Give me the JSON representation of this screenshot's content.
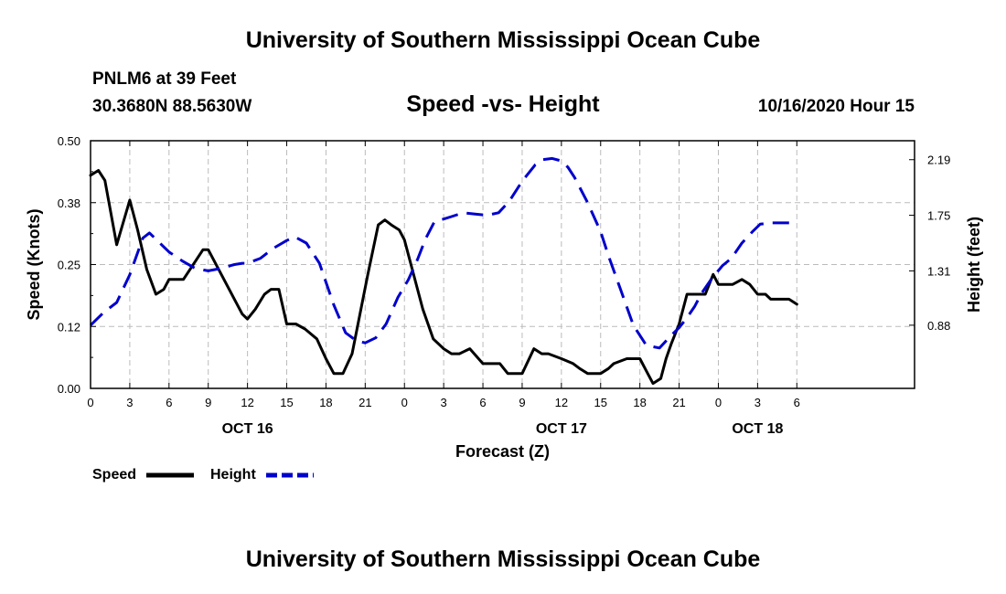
{
  "header": {
    "title": "University of Southern Mississippi Ocean Cube",
    "station": "PNLM6 at 39 Feet",
    "coords": "30.3680N 88.5630W",
    "plot_title": "Speed -vs- Height",
    "issue_time": "10/16/2020 Hour 15"
  },
  "footer": {
    "title": "University of Southern Mississippi Ocean Cube"
  },
  "colors": {
    "speed": "#000000",
    "height": "#0000cc",
    "grid": "#bbbbbb"
  },
  "chart_data": {
    "type": "line",
    "title": "Speed -vs- Height",
    "xlabel": "Forecast (Z)",
    "ylabel": "Speed (Knots)",
    "y2label": "Height (feet)",
    "x_range": [
      0,
      63
    ],
    "ylim": [
      0,
      0.5
    ],
    "y2lim": [
      0.38,
      2.34
    ],
    "x_ticks": [
      0,
      3,
      6,
      9,
      12,
      15,
      18,
      21,
      24,
      27,
      30,
      33,
      36,
      39,
      42,
      45,
      48,
      51,
      54
    ],
    "x_tick_labels": [
      "0",
      "3",
      "6",
      "9",
      "12",
      "15",
      "18",
      "21",
      "0",
      "3",
      "6",
      "9",
      "12",
      "15",
      "18",
      "21",
      "0",
      "3",
      "6"
    ],
    "date_labels": [
      {
        "x": 12,
        "label": "OCT 16"
      },
      {
        "x": 36,
        "label": "OCT 17"
      },
      {
        "x": 51,
        "label": "OCT 18"
      }
    ],
    "y_ticks": [
      0.0,
      0.125,
      0.25,
      0.375,
      0.5
    ],
    "y_tick_labels": [
      "0.00",
      "0.12",
      "0.25",
      "0.38",
      "0.50"
    ],
    "y2_ticks": [
      0.88,
      1.31,
      1.75,
      2.19
    ],
    "y2_tick_labels": [
      "0.88",
      "1.31",
      "1.75",
      "2.19"
    ],
    "grid": true,
    "legend": "bottom-left",
    "series": [
      {
        "name": "Speed",
        "axis": "left",
        "style": "solid",
        "x": [
          0,
          0.6,
          1.1,
          2,
          3,
          3.6,
          4.3,
          5,
          5.6,
          6,
          6.6,
          7.1,
          7.6,
          8.6,
          9,
          10,
          11,
          11.6,
          12,
          12.6,
          13.3,
          13.8,
          14.4,
          15,
          15.7,
          16.4,
          17.3,
          18,
          18.6,
          19.3,
          20,
          20.6,
          21.2,
          22,
          22.5,
          23,
          23.6,
          24,
          24.6,
          25.4,
          26.2,
          27,
          27.6,
          28.2,
          29,
          30,
          30.6,
          31.3,
          31.9,
          32.5,
          33,
          33.9,
          34.5,
          35,
          36,
          36.9,
          37.4,
          38,
          39,
          39.6,
          40,
          41,
          42,
          42.6,
          43,
          43.6,
          44,
          44.4,
          45,
          45.6,
          46,
          47,
          47.6,
          48,
          48.5,
          49.1,
          49.8,
          50.4,
          51,
          51.6,
          52,
          52.6,
          53.4,
          54
        ],
        "values": [
          0.43,
          0.44,
          0.42,
          0.29,
          0.38,
          0.32,
          0.24,
          0.19,
          0.2,
          0.22,
          0.22,
          0.22,
          0.24,
          0.28,
          0.28,
          0.23,
          0.18,
          0.15,
          0.14,
          0.16,
          0.19,
          0.2,
          0.2,
          0.13,
          0.13,
          0.12,
          0.1,
          0.06,
          0.03,
          0.03,
          0.07,
          0.15,
          0.23,
          0.33,
          0.34,
          0.33,
          0.32,
          0.3,
          0.24,
          0.16,
          0.1,
          0.08,
          0.07,
          0.07,
          0.08,
          0.05,
          0.05,
          0.05,
          0.03,
          0.03,
          0.03,
          0.08,
          0.07,
          0.07,
          0.06,
          0.05,
          0.04,
          0.03,
          0.03,
          0.04,
          0.05,
          0.06,
          0.06,
          0.03,
          0.01,
          0.02,
          0.06,
          0.09,
          0.13,
          0.19,
          0.19,
          0.19,
          0.23,
          0.21,
          0.21,
          0.21,
          0.22,
          0.21,
          0.19,
          0.19,
          0.18,
          0.18,
          0.18,
          0.17
        ]
      },
      {
        "name": "Height",
        "axis": "right",
        "style": "dashed",
        "x": [
          0,
          1,
          2,
          3,
          4,
          4.5,
          5,
          6,
          7,
          8,
          9,
          10,
          11,
          11.6,
          12,
          13,
          14,
          15,
          15.6,
          16.5,
          17.5,
          18.6,
          19.5,
          20.3,
          21,
          21.8,
          22.6,
          23.5,
          24.3,
          25,
          25.6,
          26.3,
          27,
          27.6,
          28.5,
          29.4,
          30.3,
          31.2,
          32,
          33,
          34,
          34.6,
          35.3,
          36,
          36.5,
          37,
          38,
          39,
          39.6,
          40.5,
          41.5,
          42.5,
          43.5,
          44.5,
          45,
          45.6,
          46.2,
          46.7,
          47.5,
          48.3,
          49,
          49.8,
          50.6,
          51.2,
          52,
          52.6,
          53.4,
          54
        ],
        "values": [
          0.88,
          0.98,
          1.06,
          1.28,
          1.57,
          1.61,
          1.56,
          1.46,
          1.39,
          1.33,
          1.31,
          1.33,
          1.36,
          1.37,
          1.37,
          1.41,
          1.49,
          1.55,
          1.58,
          1.53,
          1.37,
          1.04,
          0.82,
          0.76,
          0.74,
          0.78,
          0.89,
          1.1,
          1.24,
          1.4,
          1.56,
          1.7,
          1.72,
          1.74,
          1.77,
          1.76,
          1.75,
          1.77,
          1.86,
          2.02,
          2.15,
          2.19,
          2.2,
          2.18,
          2.13,
          2.05,
          1.85,
          1.62,
          1.43,
          1.17,
          0.88,
          0.72,
          0.7,
          0.81,
          0.86,
          0.94,
          1.03,
          1.13,
          1.25,
          1.35,
          1.41,
          1.53,
          1.62,
          1.68,
          1.69,
          1.69,
          1.69,
          1.69
        ]
      }
    ]
  }
}
